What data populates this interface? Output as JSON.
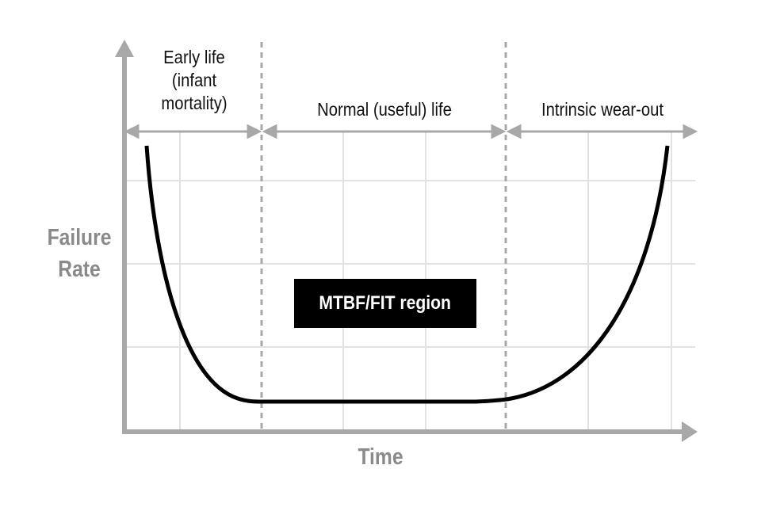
{
  "phases": [
    {
      "label": "Early life (infant mortality)"
    },
    {
      "label": "Normal (useful) life"
    },
    {
      "label": "Intrinsic wear-out"
    }
  ],
  "y_axis_label": "Failure Rate",
  "x_axis_label": "Time",
  "region_label": "MTBF/FIT region",
  "colors": {
    "curve": "#000000",
    "axis": "#a8a8a8",
    "grid": "#e0e0e0",
    "divider": "#a8a8a8",
    "region_bg": "#000000"
  }
}
